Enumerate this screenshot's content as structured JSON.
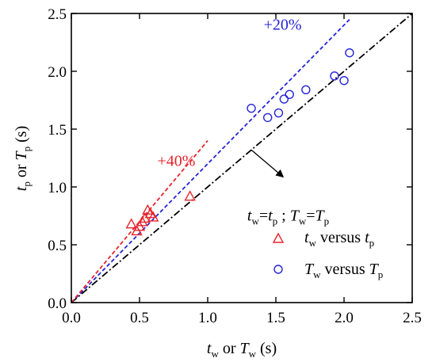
{
  "chart_data": {
    "type": "scatter",
    "title": "",
    "xlim": [
      0,
      2.5
    ],
    "ylim": [
      0,
      2.5
    ],
    "xticks": [
      "0.0",
      "0.5",
      "1.0",
      "1.5",
      "2.0",
      "2.5"
    ],
    "yticks": [
      "0.0",
      "0.5",
      "1.0",
      "1.5",
      "2.0",
      "2.5"
    ],
    "xlabel": {
      "v1": "t",
      "s1": "w",
      "mid": " or ",
      "v2": "T",
      "s2": "w",
      "unit": " (s)"
    },
    "ylabel": {
      "v1": "t",
      "s1": "p",
      "mid": " or ",
      "v2": "T",
      "s2": "p",
      "unit": " (s)"
    },
    "grid": false,
    "legend_position": "bottom-right",
    "series": [
      {
        "name": {
          "v1": "t",
          "s1": "w",
          "mid": " versus ",
          "v2": "t",
          "s2": "p"
        },
        "marker": "triangle",
        "color": "#e8232b",
        "points": [
          [
            0.44,
            0.68
          ],
          [
            0.48,
            0.62
          ],
          [
            0.5,
            0.66
          ],
          [
            0.52,
            0.7
          ],
          [
            0.54,
            0.73
          ],
          [
            0.56,
            0.8
          ],
          [
            0.58,
            0.77
          ],
          [
            0.6,
            0.74
          ],
          [
            0.87,
            0.92
          ]
        ]
      },
      {
        "name": {
          "v1": "T",
          "s1": "w",
          "mid": " versus ",
          "v2": "T",
          "s2": "p"
        },
        "marker": "circle",
        "color": "#2424d8",
        "points": [
          [
            1.32,
            1.68
          ],
          [
            1.44,
            1.6
          ],
          [
            1.52,
            1.64
          ],
          [
            1.56,
            1.76
          ],
          [
            1.6,
            1.8
          ],
          [
            1.72,
            1.84
          ],
          [
            1.93,
            1.96
          ],
          [
            2.0,
            1.92
          ],
          [
            2.04,
            2.16
          ]
        ]
      }
    ],
    "reference_lines": [
      {
        "slope": 1.0,
        "x_end": 2.5,
        "style": "dash-dot",
        "color": "#000000"
      },
      {
        "slope": 1.2,
        "x_end": 2.04,
        "style": "dashed",
        "color": "#2424d8",
        "label": "+20%"
      },
      {
        "slope": 1.4,
        "x_end": 1.0,
        "style": "dashed",
        "color": "#e8232b",
        "label": "+40%"
      }
    ],
    "annotation": {
      "equation": {
        "a": "t",
        "as": "w",
        "b": "t",
        "bs": "p",
        "sep": " ; ",
        "c": "T",
        "cs": "w",
        "d": "T",
        "ds": "p"
      },
      "arrow_from": [
        1.32,
        1.32
      ],
      "arrow_to": [
        1.55,
        1.09
      ]
    },
    "label_positions": {
      "plus20": [
        1.55,
        2.36
      ],
      "plus40": [
        0.77,
        1.18
      ],
      "equation": [
        1.29,
        0.71
      ]
    }
  }
}
